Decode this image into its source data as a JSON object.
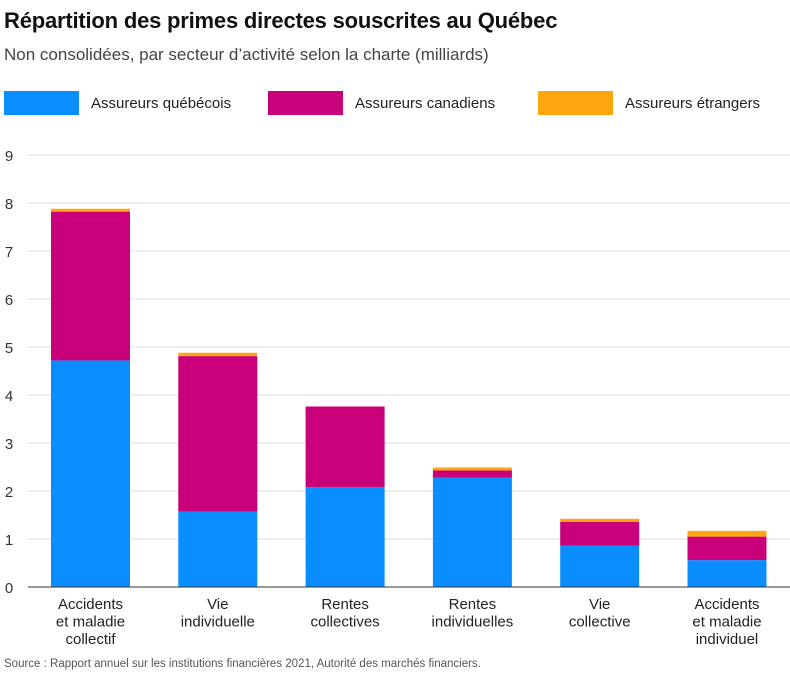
{
  "title": "Répartition des primes directes souscrites au Québec",
  "subtitle": "Non consolidées, par secteur d’activité selon la charte (milliards)",
  "source": "Source : Rapport annuel sur les institutions financières 2021, Autorité des marchés financiers.",
  "colors": {
    "quebecois": "#0a8dff",
    "canadiens": "#c9007a",
    "etrangers": "#ffa60f"
  },
  "legend": [
    "Assureurs québécois",
    "Assureurs canadiens",
    "Assureurs étrangers"
  ],
  "chart_data": {
    "type": "bar",
    "stacked": true,
    "title": "Répartition des primes directes souscrites au Québec",
    "subtitle": "Non consolidées, par secteur d’activité selon la charte (milliards)",
    "xlabel": "",
    "ylabel": "",
    "ylim": [
      0,
      9
    ],
    "yticks": [
      0,
      1,
      2,
      3,
      4,
      5,
      6,
      7,
      8,
      9
    ],
    "grid": true,
    "legend_position": "top",
    "categories": [
      [
        "Accidents",
        "et maladie",
        "collectif"
      ],
      [
        "Vie",
        "individuelle"
      ],
      [
        "Rentes",
        "collectives"
      ],
      [
        "Rentes",
        "individuelles"
      ],
      [
        "Vie",
        "collective"
      ],
      [
        "Accidents",
        "et maladie",
        "individuel"
      ]
    ],
    "series": [
      {
        "name": "Assureurs québécois",
        "values": [
          4.72,
          1.57,
          2.08,
          2.28,
          0.86,
          0.56
        ]
      },
      {
        "name": "Assureurs canadiens",
        "values": [
          3.1,
          3.24,
          1.68,
          0.15,
          0.5,
          0.49
        ]
      },
      {
        "name": "Assureurs étrangers",
        "values": [
          0.06,
          0.07,
          0.0,
          0.06,
          0.06,
          0.12
        ]
      }
    ]
  }
}
